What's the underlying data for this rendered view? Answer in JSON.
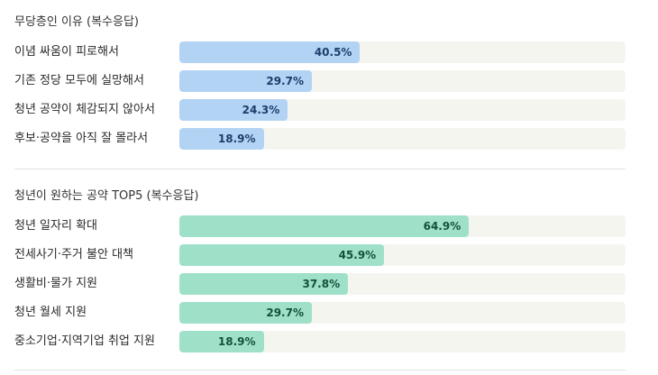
{
  "colors": {
    "reasons_bar": "#b3d3f5",
    "reasons_text": "#1c3f6a",
    "pledges_bar": "#9fe1c8",
    "pledges_text": "#13513b",
    "track": "#f5f5f0"
  },
  "chart_data": [
    {
      "type": "bar",
      "orientation": "horizontal",
      "title": "무당층인 이유 (복수응답)",
      "categories": [
        "이념 싸움이 피로해서",
        "기존 정당 모두에 실망해서",
        "청년 공약이 체감되지 않아서",
        "후보·공약을 아직 잘 몰라서"
      ],
      "values": [
        40.5,
        29.7,
        24.3,
        18.9
      ],
      "labels": [
        "40.5%",
        "29.7%",
        "24.3%",
        "18.9%"
      ],
      "xlim": [
        0,
        100
      ],
      "unit": "%"
    },
    {
      "type": "bar",
      "orientation": "horizontal",
      "title": "청년이 원하는 공약 TOP5 (복수응답)",
      "categories": [
        "청년 일자리 확대",
        "전세사기·주거 불안 대책",
        "생활비·물가 지원",
        "청년 월세 지원",
        "중소기업·지역기업 취업 지원"
      ],
      "values": [
        64.9,
        45.9,
        37.8,
        29.7,
        18.9
      ],
      "labels": [
        "64.9%",
        "45.9%",
        "37.8%",
        "29.7%",
        "18.9%"
      ],
      "xlim": [
        0,
        100
      ],
      "unit": "%"
    }
  ]
}
